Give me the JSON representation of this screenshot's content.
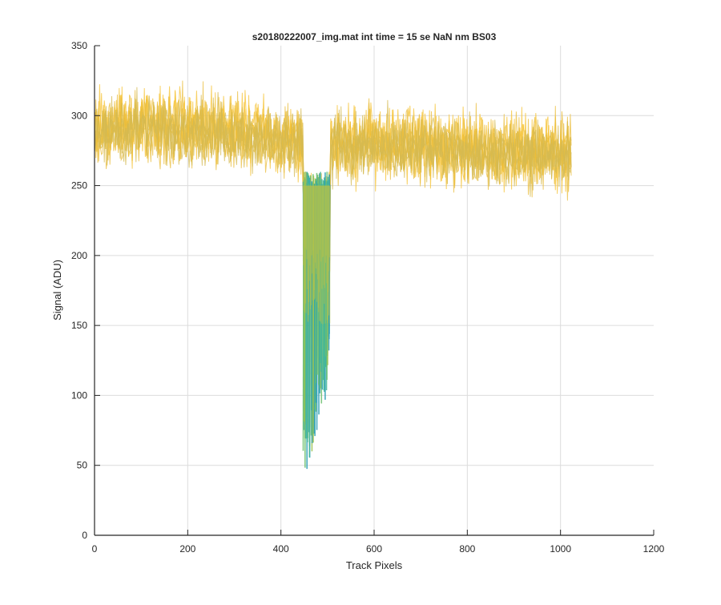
{
  "chart_data": {
    "type": "line",
    "title": "s20180222007_img.mat int time = 15 se  NaN nm BS03",
    "xlabel": "Track Pixels",
    "ylabel": "Signal (ADU)",
    "xlim": [
      0,
      1200
    ],
    "ylim": [
      0,
      350
    ],
    "xticks": [
      0,
      200,
      400,
      600,
      800,
      1000,
      1200
    ],
    "yticks": [
      0,
      50,
      100,
      150,
      200,
      250,
      300,
      350
    ],
    "grid": true,
    "x_range": [
      1,
      1024
    ],
    "series": [
      {
        "color": "#f5c130",
        "mean": [
          [
            0,
            290
          ],
          [
            100,
            295
          ],
          [
            200,
            292
          ],
          [
            300,
            289
          ],
          [
            400,
            285
          ],
          [
            500,
            282
          ],
          [
            600,
            281
          ],
          [
            700,
            279
          ],
          [
            800,
            277
          ],
          [
            900,
            276
          ],
          [
            1024,
            274
          ]
        ],
        "spread": 22
      },
      {
        "color": "#e9bc3a",
        "mean": [
          [
            0,
            288
          ],
          [
            100,
            292
          ],
          [
            200,
            290
          ],
          [
            300,
            287
          ],
          [
            400,
            283
          ],
          [
            500,
            280
          ],
          [
            600,
            279
          ],
          [
            700,
            277
          ],
          [
            800,
            275
          ],
          [
            900,
            274
          ],
          [
            1024,
            272
          ]
        ],
        "spread": 22
      },
      {
        "color": "#d4ba52",
        "mean": [
          [
            0,
            287
          ],
          [
            100,
            291
          ],
          [
            200,
            289
          ],
          [
            300,
            286
          ],
          [
            400,
            282
          ],
          [
            500,
            279
          ],
          [
            600,
            278
          ],
          [
            700,
            276
          ],
          [
            800,
            274
          ],
          [
            900,
            273
          ],
          [
            1024,
            271
          ]
        ],
        "spread": 20
      }
    ],
    "dip": {
      "x_range": [
        448,
        505
      ],
      "min_values": [
        42,
        45,
        55,
        60,
        65,
        75,
        85,
        90,
        95,
        100,
        105
      ],
      "colors": [
        "#45b896",
        "#6cc070",
        "#9cc250",
        "#2a9fb4"
      ]
    }
  }
}
